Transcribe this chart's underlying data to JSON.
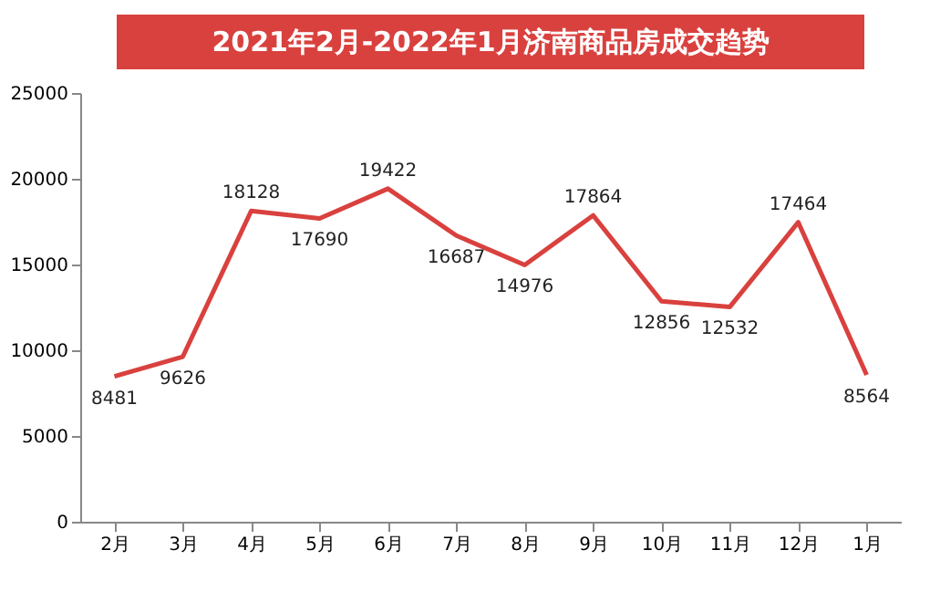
{
  "chart_data": {
    "type": "line",
    "title": "2021年2月-2022年1月济南商品房成交趋势",
    "categories": [
      "2月",
      "3月",
      "4月",
      "5月",
      "6月",
      "7月",
      "8月",
      "9月",
      "10月",
      "11月",
      "12月",
      "1月"
    ],
    "values": [
      8481,
      9626,
      18128,
      17690,
      19422,
      16687,
      14976,
      17864,
      12856,
      12532,
      17464,
      8564
    ],
    "color": "#d9413e",
    "ylim": [
      0,
      25000
    ],
    "yticks": [
      0,
      5000,
      10000,
      15000,
      20000,
      25000
    ],
    "grid": false,
    "marker": "none",
    "data_labels": true
  }
}
